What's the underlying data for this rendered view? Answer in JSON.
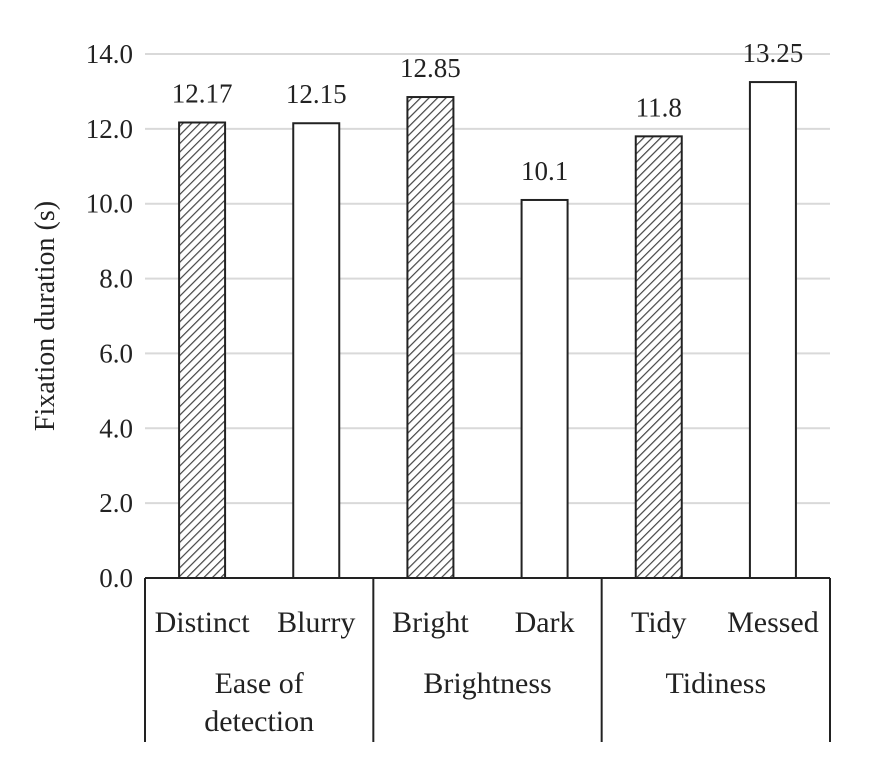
{
  "chart_data": {
    "type": "bar",
    "ylabel": "Fixation duration (s)",
    "ylim": [
      0,
      14
    ],
    "yticks": [
      "0.0",
      "2.0",
      "4.0",
      "6.0",
      "8.0",
      "10.0",
      "12.0",
      "14.0"
    ],
    "grid": true,
    "categories": [
      "Distinct",
      "Blurry",
      "Bright",
      "Dark",
      "Tidy",
      "Messed"
    ],
    "values": [
      12.17,
      12.15,
      12.85,
      10.1,
      11.8,
      13.25
    ],
    "value_labels": [
      "12.17",
      "12.15",
      "12.85",
      "10.1",
      "11.8",
      "13.25"
    ],
    "fills": [
      "hatched",
      "white",
      "hatched",
      "white",
      "hatched",
      "white"
    ],
    "groups": [
      {
        "label_lines": [
          "Ease of",
          "detection"
        ],
        "categories": [
          "Distinct",
          "Blurry"
        ]
      },
      {
        "label_lines": [
          "Brightness"
        ],
        "categories": [
          "Bright",
          "Dark"
        ]
      },
      {
        "label_lines": [
          "Tidiness"
        ],
        "categories": [
          "Tidy",
          "Messed"
        ]
      }
    ],
    "colors": {
      "bar_stroke": "#222222",
      "hatch": "#444444",
      "grid": "#d9d9d9",
      "axis": "#222222"
    }
  }
}
